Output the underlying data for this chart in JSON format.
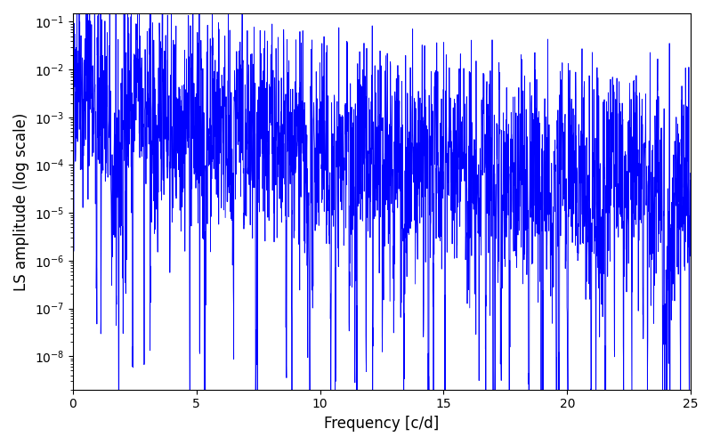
{
  "xlabel": "Frequency [c/d]",
  "ylabel": "LS amplitude (log scale)",
  "line_color": "#0000ff",
  "line_width": 0.6,
  "xmin": 0,
  "xmax": 25,
  "ymin": 2e-09,
  "ymax": 0.15,
  "yscale": "log",
  "figwidth": 8.0,
  "figheight": 5.0,
  "dpi": 100,
  "background_color": "#ffffff",
  "seed": 42,
  "n_freq": 3000,
  "freq_max": 25.0,
  "peak_freq": 0.3,
  "peak_amp": 0.06,
  "floor_amp": 8e-05,
  "decay_scale": 2.5,
  "spike_variance_log": 2.5,
  "n_deep_nulls": 60,
  "null_depth_min": 1e-05,
  "null_depth_max": 0.001
}
